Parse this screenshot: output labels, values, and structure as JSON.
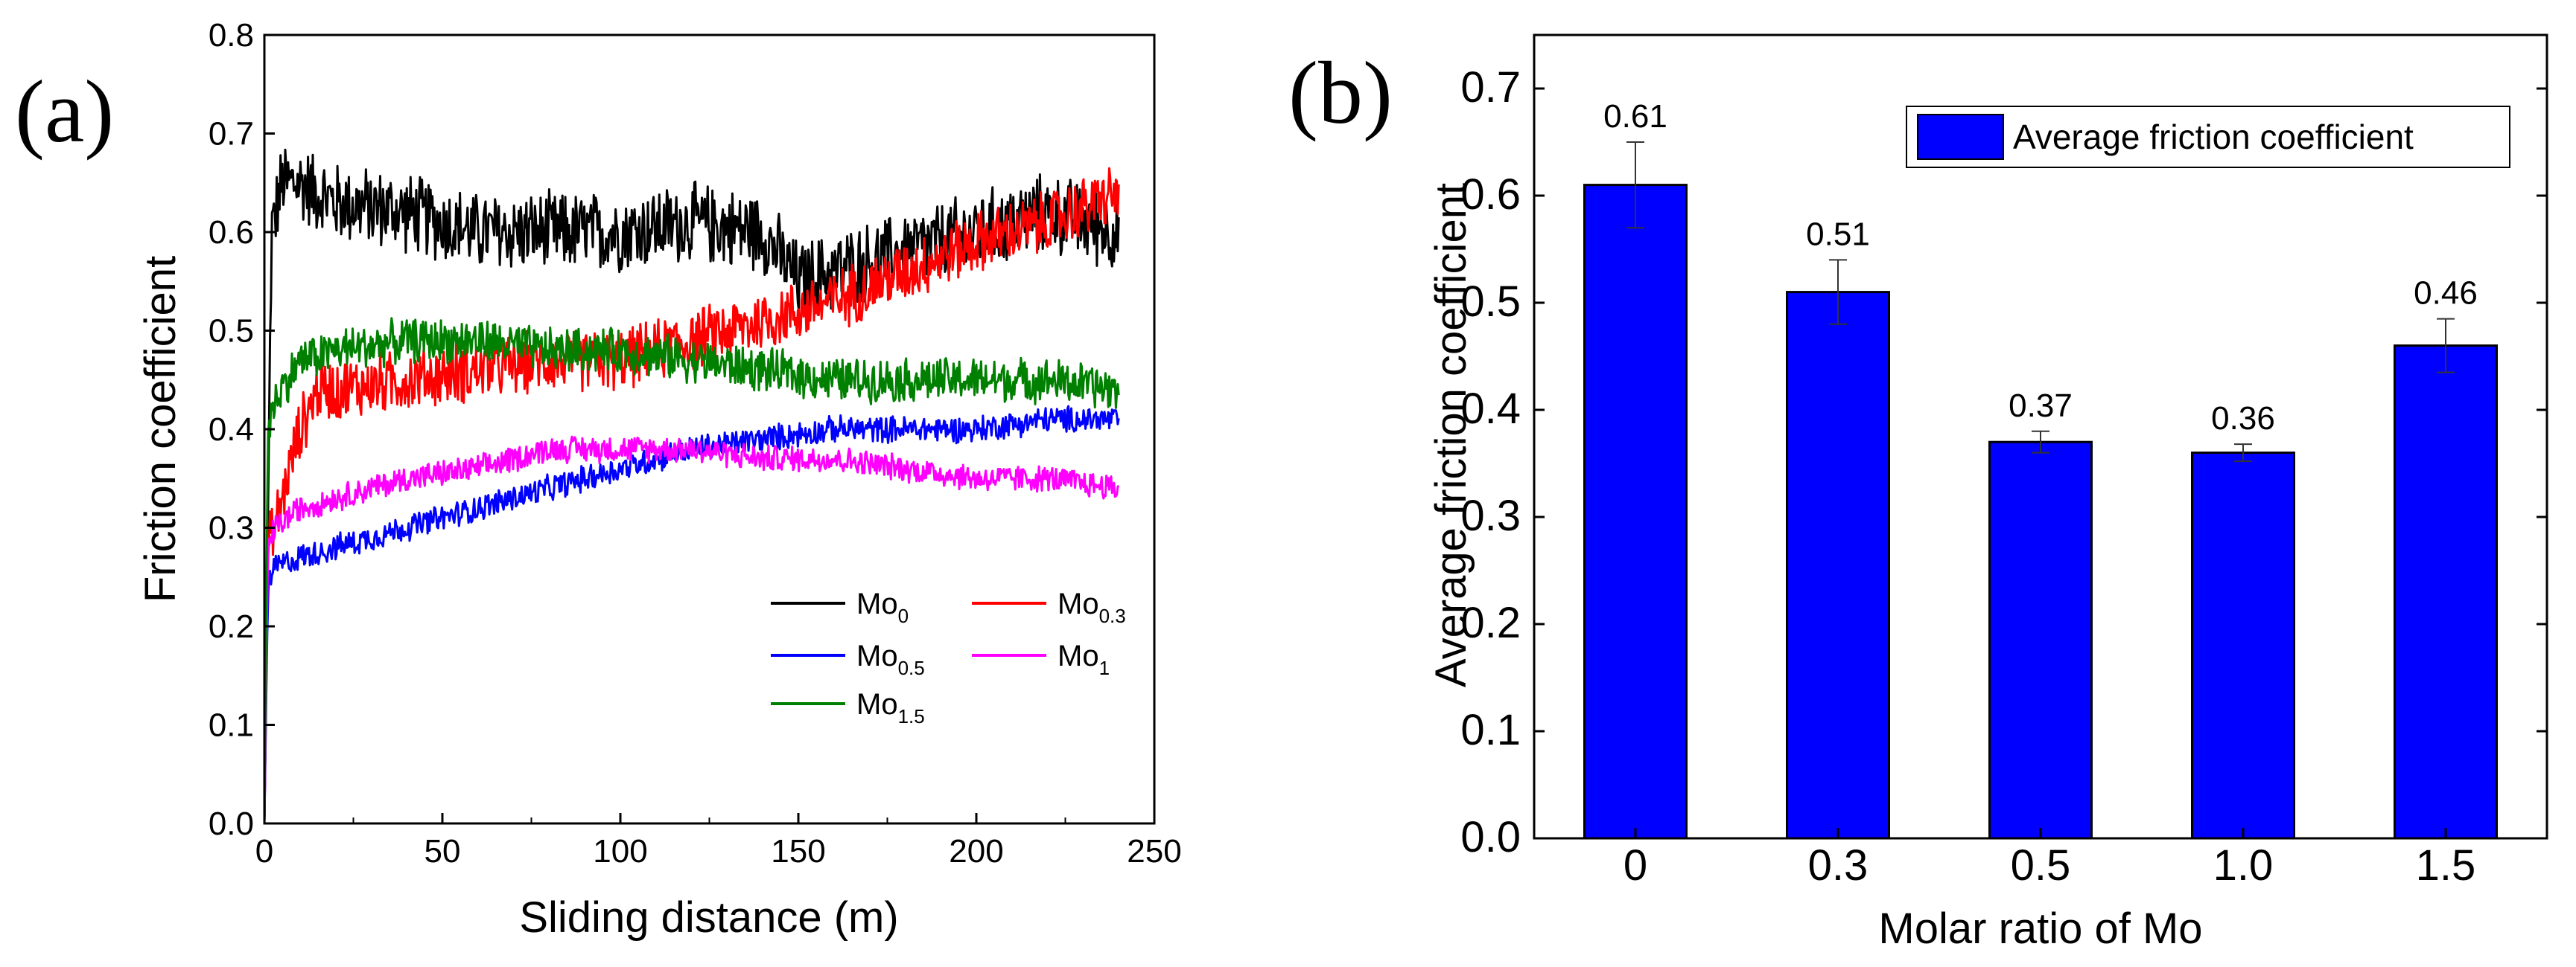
{
  "chart_data": [
    {
      "panel_label": "(a)",
      "type": "line",
      "xlabel": "Sliding distance (m)",
      "ylabel": "Friction coefficient",
      "xlim": [
        0,
        250
      ],
      "ylim": [
        0.0,
        0.8
      ],
      "xticks": [
        "0",
        "50",
        "100",
        "150",
        "200",
        "250"
      ],
      "yticks": [
        "0.0",
        "0.1",
        "0.2",
        "0.3",
        "0.4",
        "0.5",
        "0.6",
        "0.7",
        "0.8"
      ],
      "legend": [
        {
          "base": "Mo",
          "sub": "0",
          "color": "#000000"
        },
        {
          "base": "Mo",
          "sub": "0.3",
          "color": "#ff0000"
        },
        {
          "base": "Mo",
          "sub": "0.5",
          "color": "#0000ff"
        },
        {
          "base": "Mo",
          "sub": "1",
          "color": "#ff00ff"
        },
        {
          "base": "Mo",
          "sub": "1.5",
          "color": "#008000"
        }
      ],
      "series": [
        {
          "name": "Mo0",
          "color": "#000000",
          "noise": 0.045,
          "x": [
            0,
            2,
            5,
            10,
            20,
            40,
            60,
            80,
            100,
            120,
            140,
            150,
            160,
            180,
            200,
            220,
            240
          ],
          "y": [
            0.0,
            0.6,
            0.65,
            0.65,
            0.63,
            0.62,
            0.6,
            0.6,
            0.6,
            0.61,
            0.6,
            0.55,
            0.56,
            0.58,
            0.6,
            0.62,
            0.6
          ]
        },
        {
          "name": "Mo0.3",
          "color": "#ff0000",
          "noise": 0.035,
          "x": [
            0,
            1,
            3,
            5,
            10,
            15,
            20,
            40,
            60,
            80,
            100,
            120,
            140,
            160,
            180,
            200,
            220,
            240
          ],
          "y": [
            0.0,
            0.28,
            0.3,
            0.33,
            0.4,
            0.44,
            0.44,
            0.45,
            0.46,
            0.47,
            0.47,
            0.49,
            0.51,
            0.53,
            0.56,
            0.59,
            0.61,
            0.64
          ]
        },
        {
          "name": "Mo0.5",
          "color": "#0000ff",
          "noise": 0.015,
          "x": [
            0,
            1,
            3,
            10,
            20,
            40,
            60,
            80,
            100,
            120,
            140,
            160,
            180,
            200,
            220,
            240
          ],
          "y": [
            0.0,
            0.24,
            0.26,
            0.27,
            0.28,
            0.3,
            0.32,
            0.34,
            0.36,
            0.38,
            0.39,
            0.4,
            0.4,
            0.4,
            0.41,
            0.41
          ]
        },
        {
          "name": "Mo1",
          "color": "#ff00ff",
          "noise": 0.015,
          "x": [
            0,
            1,
            3,
            10,
            20,
            40,
            60,
            80,
            100,
            120,
            140,
            160,
            180,
            200,
            220,
            240
          ],
          "y": [
            0.0,
            0.28,
            0.3,
            0.32,
            0.33,
            0.35,
            0.36,
            0.38,
            0.38,
            0.38,
            0.37,
            0.37,
            0.36,
            0.35,
            0.35,
            0.34
          ]
        },
        {
          "name": "Mo1.5",
          "color": "#008000",
          "noise": 0.025,
          "x": [
            0,
            1,
            3,
            10,
            20,
            40,
            60,
            80,
            100,
            120,
            140,
            160,
            180,
            200,
            220,
            240
          ],
          "y": [
            0.0,
            0.4,
            0.43,
            0.47,
            0.48,
            0.49,
            0.49,
            0.48,
            0.48,
            0.47,
            0.46,
            0.45,
            0.45,
            0.45,
            0.45,
            0.44
          ]
        }
      ]
    },
    {
      "panel_label": "(b)",
      "type": "bar",
      "xlabel": "Molar ratio of Mo",
      "ylabel": "Average friction coefficient",
      "ylim": [
        0.0,
        0.75
      ],
      "yticks": [
        "0.0",
        "0.1",
        "0.2",
        "0.3",
        "0.4",
        "0.5",
        "0.6",
        "0.7"
      ],
      "categories": [
        "0",
        "0.3",
        "0.5",
        "1.0",
        "1.5"
      ],
      "values": [
        0.61,
        0.51,
        0.37,
        0.36,
        0.46
      ],
      "errors": [
        0.04,
        0.03,
        0.01,
        0.008,
        0.025
      ],
      "value_labels": [
        "0.61",
        "0.51",
        "0.37",
        "0.36",
        "0.46"
      ],
      "bar_color": "#0000ff",
      "legend": "Average friction coefficient"
    }
  ]
}
